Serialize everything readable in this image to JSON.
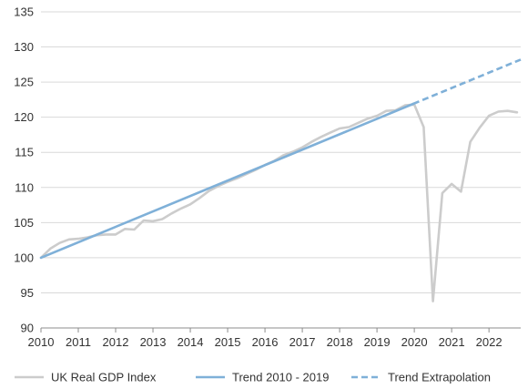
{
  "chart_data": {
    "type": "line",
    "title": "",
    "xlabel": "",
    "ylabel": "",
    "xlim": [
      2010,
      2022.85
    ],
    "ylim": [
      90,
      135
    ],
    "y_ticks": [
      90,
      95,
      100,
      105,
      110,
      115,
      120,
      125,
      130,
      135
    ],
    "y_tick_labels": [
      "90",
      "95",
      "100",
      "105",
      "110",
      "115",
      "120",
      "125",
      "130",
      "135"
    ],
    "x_ticks": [
      2010,
      2011,
      2012,
      2013,
      2014,
      2015,
      2016,
      2017,
      2018,
      2019,
      2020,
      2021,
      2022
    ],
    "x_tick_labels": [
      "2010",
      "2011",
      "2012",
      "2013",
      "2014",
      "2015",
      "2016",
      "2017",
      "2018",
      "2019",
      "2020",
      "2021",
      "2022"
    ],
    "grid": "horizontal",
    "legend_position": "bottom",
    "series": [
      {
        "name": "UK Real GDP Index",
        "color": "#cccccc",
        "style": "solid",
        "x": [
          2010,
          2010.25,
          2010.5,
          2010.75,
          2011,
          2011.25,
          2011.5,
          2011.75,
          2012,
          2012.25,
          2012.5,
          2012.75,
          2013,
          2013.25,
          2013.5,
          2013.75,
          2014,
          2014.25,
          2014.5,
          2014.75,
          2015,
          2015.25,
          2015.5,
          2015.75,
          2016,
          2016.25,
          2016.5,
          2016.75,
          2017,
          2017.25,
          2017.5,
          2017.75,
          2018,
          2018.25,
          2018.5,
          2018.75,
          2019,
          2019.25,
          2019.5,
          2019.75,
          2020,
          2020.25,
          2020.5,
          2020.75,
          2021,
          2021.25,
          2021.5,
          2021.75,
          2022,
          2022.25,
          2022.5,
          2022.75
        ],
        "values": [
          100.0,
          101.3,
          102.1,
          102.6,
          102.7,
          102.9,
          103.2,
          103.3,
          103.3,
          104.1,
          104.0,
          105.3,
          105.2,
          105.5,
          106.3,
          107.0,
          107.6,
          108.5,
          109.5,
          110.2,
          110.8,
          111.3,
          111.9,
          112.5,
          113.2,
          113.8,
          114.6,
          115.1,
          115.7,
          116.5,
          117.2,
          117.8,
          118.4,
          118.6,
          119.2,
          119.8,
          120.2,
          120.9,
          121.0,
          121.7,
          121.8,
          118.6,
          93.8,
          109.2,
          110.5,
          109.4,
          116.5,
          118.5,
          120.2,
          120.8,
          120.9,
          120.7
        ],
        "end_value": 120.7
      },
      {
        "name": "Trend 2010 - 2019",
        "color": "#7fb0d8",
        "style": "solid",
        "x": [
          2010,
          2019.97
        ],
        "values": [
          100.0,
          121.9
        ]
      },
      {
        "name": "Trend Extrapolation",
        "color": "#7fb0d8",
        "style": "dashed",
        "x": [
          2019.97,
          2022.85
        ],
        "values": [
          121.9,
          128.2
        ]
      }
    ]
  }
}
